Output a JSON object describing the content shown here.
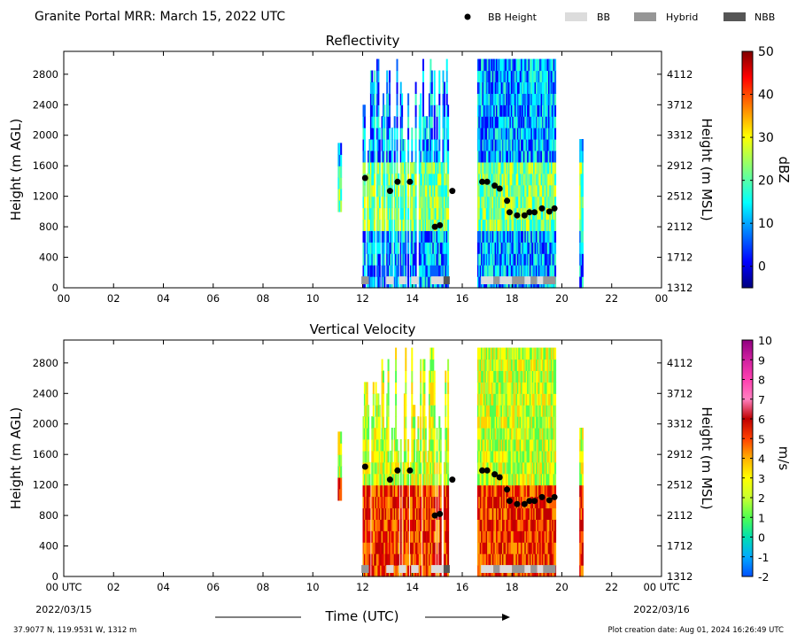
{
  "header": {
    "title": "Granite Portal MRR:  March 15, 2022 UTC",
    "legend": [
      {
        "label": "BB Height",
        "kind": "dot",
        "color": "#000000"
      },
      {
        "label": "BB",
        "kind": "box",
        "color": "#dcdcdc"
      },
      {
        "label": "Hybrid",
        "kind": "box",
        "color": "#969696"
      },
      {
        "label": "NBB",
        "kind": "box",
        "color": "#555555"
      }
    ]
  },
  "footer": {
    "time_label": "Time (UTC)",
    "start_date": "2022/03/15",
    "end_date": "2022/03/16",
    "location": "37.9077 N, 119.9531 W, 1312 m",
    "creation": "Plot creation date: Aug 01, 2024 16:26:49 UTC"
  },
  "chart_data": [
    {
      "type": "heatmap",
      "title": "Reflectivity",
      "ylabel": "Height (m AGL)",
      "ylabel_right": "Height (m MSL)",
      "xlim": [
        0,
        24
      ],
      "ylim": [
        0,
        3100
      ],
      "x_ticks": [
        "00",
        "02",
        "04",
        "06",
        "08",
        "10",
        "12",
        "14",
        "16",
        "18",
        "20",
        "22",
        "00"
      ],
      "y_ticks": [
        0,
        400,
        800,
        1200,
        1600,
        2000,
        2400,
        2800
      ],
      "y_ticks_right": [
        1312,
        1712,
        2112,
        2512,
        2912,
        3312,
        3712,
        4112
      ],
      "colorbar": {
        "label": "dBZ",
        "range": [
          -5,
          50
        ],
        "ticks": [
          0,
          10,
          20,
          30,
          40,
          50
        ]
      },
      "bb_height": [
        {
          "x": 12.1,
          "y": 1440
        },
        {
          "x": 13.1,
          "y": 1270
        },
        {
          "x": 13.4,
          "y": 1390
        },
        {
          "x": 13.9,
          "y": 1390
        },
        {
          "x": 14.9,
          "y": 800
        },
        {
          "x": 15.1,
          "y": 820
        },
        {
          "x": 15.6,
          "y": 1270
        },
        {
          "x": 16.8,
          "y": 1390
        },
        {
          "x": 17.0,
          "y": 1390
        },
        {
          "x": 17.3,
          "y": 1340
        },
        {
          "x": 17.5,
          "y": 1300
        },
        {
          "x": 17.8,
          "y": 1140
        },
        {
          "x": 17.9,
          "y": 990
        },
        {
          "x": 18.2,
          "y": 950
        },
        {
          "x": 18.5,
          "y": 950
        },
        {
          "x": 18.7,
          "y": 990
        },
        {
          "x": 18.9,
          "y": 990
        },
        {
          "x": 19.2,
          "y": 1040
        },
        {
          "x": 19.5,
          "y": 1000
        },
        {
          "x": 19.7,
          "y": 1040
        }
      ],
      "bb_type": [
        {
          "start": 11.95,
          "end": 12.25,
          "kind": "Hybrid"
        },
        {
          "start": 12.95,
          "end": 13.25,
          "kind": "BB"
        },
        {
          "start": 13.45,
          "end": 13.75,
          "kind": "BB"
        },
        {
          "start": 13.95,
          "end": 14.25,
          "kind": "BB"
        },
        {
          "start": 14.75,
          "end": 15.25,
          "kind": "BB"
        },
        {
          "start": 15.25,
          "end": 15.5,
          "kind": "NBB"
        },
        {
          "start": 16.75,
          "end": 17.25,
          "kind": "BB"
        },
        {
          "start": 17.25,
          "end": 17.5,
          "kind": "Hybrid"
        },
        {
          "start": 17.5,
          "end": 18.0,
          "kind": "BB"
        },
        {
          "start": 18.0,
          "end": 18.5,
          "kind": "Hybrid"
        },
        {
          "start": 18.5,
          "end": 18.75,
          "kind": "BB"
        },
        {
          "start": 18.75,
          "end": 19.0,
          "kind": "Hybrid"
        },
        {
          "start": 19.0,
          "end": 19.25,
          "kind": "BB"
        },
        {
          "start": 19.25,
          "end": 19.75,
          "kind": "Hybrid"
        }
      ]
    },
    {
      "type": "heatmap",
      "title": "Vertical Velocity",
      "ylabel": "Height (m AGL)",
      "ylabel_right": "Height (m MSL)",
      "xlim": [
        0,
        24
      ],
      "ylim": [
        0,
        3100
      ],
      "x_ticks": [
        "00 UTC",
        "02",
        "04",
        "06",
        "08",
        "10",
        "12",
        "14",
        "16",
        "18",
        "20",
        "22",
        "00 UTC"
      ],
      "y_ticks": [
        0,
        400,
        800,
        1200,
        1600,
        2000,
        2400,
        2800
      ],
      "y_ticks_right": [
        1312,
        1712,
        2112,
        2512,
        2912,
        3312,
        3712,
        4112
      ],
      "colorbar": {
        "label": "m/s",
        "range": [
          -2,
          10
        ],
        "ticks": [
          -2,
          -1,
          0,
          1,
          2,
          3,
          4,
          5,
          6,
          7,
          8,
          9,
          10
        ]
      },
      "bb_height": [
        {
          "x": 12.1,
          "y": 1440
        },
        {
          "x": 13.1,
          "y": 1270
        },
        {
          "x": 13.4,
          "y": 1390
        },
        {
          "x": 13.9,
          "y": 1390
        },
        {
          "x": 14.9,
          "y": 800
        },
        {
          "x": 15.1,
          "y": 820
        },
        {
          "x": 15.6,
          "y": 1270
        },
        {
          "x": 16.8,
          "y": 1390
        },
        {
          "x": 17.0,
          "y": 1390
        },
        {
          "x": 17.3,
          "y": 1340
        },
        {
          "x": 17.5,
          "y": 1300
        },
        {
          "x": 17.8,
          "y": 1140
        },
        {
          "x": 17.9,
          "y": 990
        },
        {
          "x": 18.2,
          "y": 950
        },
        {
          "x": 18.5,
          "y": 950
        },
        {
          "x": 18.7,
          "y": 990
        },
        {
          "x": 18.9,
          "y": 990
        },
        {
          "x": 19.2,
          "y": 1040
        },
        {
          "x": 19.5,
          "y": 1000
        },
        {
          "x": 19.7,
          "y": 1040
        }
      ],
      "bb_type": [
        {
          "start": 11.95,
          "end": 12.25,
          "kind": "Hybrid"
        },
        {
          "start": 12.95,
          "end": 13.25,
          "kind": "BB"
        },
        {
          "start": 13.45,
          "end": 13.75,
          "kind": "BB"
        },
        {
          "start": 13.95,
          "end": 14.25,
          "kind": "BB"
        },
        {
          "start": 14.75,
          "end": 15.25,
          "kind": "BB"
        },
        {
          "start": 15.25,
          "end": 15.5,
          "kind": "NBB"
        },
        {
          "start": 16.75,
          "end": 17.25,
          "kind": "BB"
        },
        {
          "start": 17.25,
          "end": 17.5,
          "kind": "Hybrid"
        },
        {
          "start": 17.5,
          "end": 18.0,
          "kind": "BB"
        },
        {
          "start": 18.0,
          "end": 18.5,
          "kind": "Hybrid"
        },
        {
          "start": 18.5,
          "end": 18.75,
          "kind": "BB"
        },
        {
          "start": 18.75,
          "end": 19.0,
          "kind": "Hybrid"
        },
        {
          "start": 19.0,
          "end": 19.25,
          "kind": "BB"
        },
        {
          "start": 19.25,
          "end": 19.75,
          "kind": "Hybrid"
        }
      ]
    }
  ]
}
